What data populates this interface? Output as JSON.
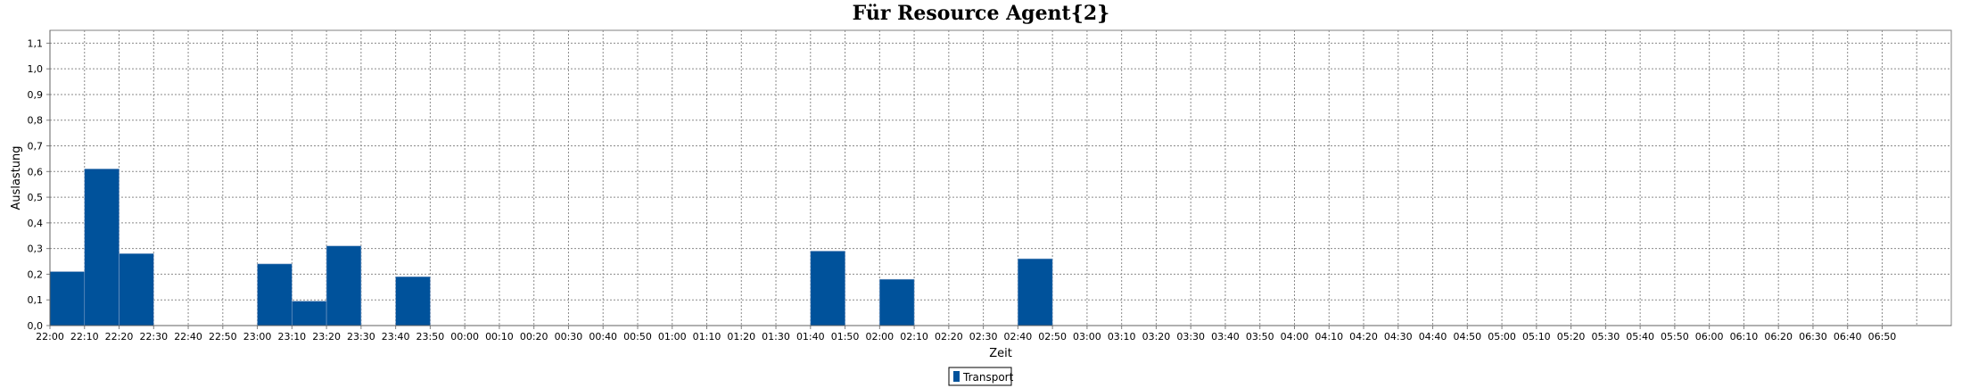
{
  "chart_data": {
    "type": "bar",
    "title": "Für Resource Agent{2}",
    "xlabel": "Zeit",
    "ylabel": "Auslastung",
    "ylim": [
      0,
      1.15
    ],
    "yticks": [
      "0,0",
      "0,1",
      "0,2",
      "0,3",
      "0,4",
      "0,5",
      "0,6",
      "0,7",
      "0,8",
      "0,9",
      "1,0",
      "1,1"
    ],
    "grid": true,
    "legend_position": "bottom-center",
    "categories": [
      "22:00",
      "22:10",
      "22:20",
      "22:30",
      "22:40",
      "22:50",
      "23:00",
      "23:10",
      "23:20",
      "23:30",
      "23:40",
      "23:50",
      "00:00",
      "00:10",
      "00:20",
      "00:30",
      "00:40",
      "00:50",
      "01:00",
      "01:10",
      "01:20",
      "01:30",
      "01:40",
      "01:50",
      "02:00",
      "02:10",
      "02:20",
      "02:30",
      "02:40",
      "02:50",
      "03:00",
      "03:10",
      "03:20",
      "03:30",
      "03:40",
      "03:50",
      "04:00",
      "04:10",
      "04:20",
      "04:30",
      "04:40",
      "04:50",
      "05:00",
      "05:10",
      "05:20",
      "05:30",
      "05:40",
      "05:50",
      "06:00",
      "06:10",
      "06:20",
      "06:30",
      "06:40",
      "06:50"
    ],
    "series": [
      {
        "name": "Transport",
        "color": "#00529b",
        "values": [
          0.21,
          0.61,
          0.28,
          0,
          0,
          0,
          0.24,
          0.095,
          0.31,
          0,
          0.19,
          0,
          0,
          0,
          0,
          0,
          0,
          0,
          0,
          0,
          0,
          0,
          0.29,
          0,
          0.18,
          0,
          0,
          0,
          0.26,
          0,
          0,
          0,
          0,
          0,
          0,
          0,
          0,
          0,
          0,
          0,
          0,
          0,
          0,
          0,
          0,
          0,
          0,
          0,
          0,
          0,
          0,
          0,
          0,
          0
        ]
      }
    ]
  }
}
